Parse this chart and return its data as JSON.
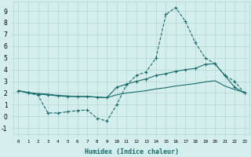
{
  "xlabel": "Humidex (Indice chaleur)",
  "bg_color": "#d4eeed",
  "grid_color": "#b8d8d8",
  "line_color": "#1a6b6b",
  "xlim": [
    -0.5,
    23.5
  ],
  "ylim": [
    -1.5,
    9.8
  ],
  "xtick_labels": [
    "0",
    "1",
    "2",
    "3",
    "4",
    "5",
    "6",
    "7",
    "8",
    "9",
    "10",
    "11",
    "12",
    "13",
    "14",
    "15",
    "16",
    "17",
    "18",
    "19",
    "20",
    "21",
    "22",
    "23"
  ],
  "ytick_labels": [
    "-1",
    "0",
    "1",
    "2",
    "3",
    "4",
    "5",
    "6",
    "7",
    "8",
    "9"
  ],
  "ytick_vals": [
    -1,
    0,
    1,
    2,
    3,
    4,
    5,
    6,
    7,
    8,
    9
  ],
  "series1_x": [
    0,
    1,
    2,
    3,
    4,
    5,
    6,
    7,
    8,
    9,
    10,
    11,
    12,
    13,
    14,
    15,
    16,
    17,
    18,
    19,
    20,
    21,
    22,
    23
  ],
  "series1_y": [
    2.2,
    2.0,
    1.8,
    0.3,
    0.3,
    0.4,
    0.5,
    0.55,
    -0.15,
    -0.4,
    1.0,
    2.7,
    3.5,
    3.8,
    5.0,
    8.7,
    9.3,
    8.1,
    6.3,
    5.0,
    4.5,
    3.5,
    3.0,
    2.0
  ],
  "series2_x": [
    0,
    1,
    2,
    3,
    4,
    5,
    6,
    7,
    8,
    9,
    10,
    11,
    12,
    13,
    14,
    15,
    16,
    17,
    18,
    19,
    20,
    21,
    22,
    23
  ],
  "series2_y": [
    2.2,
    2.0,
    1.9,
    1.85,
    1.75,
    1.7,
    1.7,
    1.7,
    1.65,
    1.6,
    2.5,
    2.75,
    3.0,
    3.2,
    3.5,
    3.65,
    3.85,
    4.0,
    4.1,
    4.45,
    4.5,
    3.5,
    2.5,
    2.0
  ],
  "series3_x": [
    0,
    1,
    2,
    3,
    4,
    5,
    6,
    7,
    8,
    9,
    10,
    11,
    12,
    13,
    14,
    15,
    16,
    17,
    18,
    19,
    20,
    21,
    22,
    23
  ],
  "series3_y": [
    2.2,
    2.05,
    1.95,
    1.9,
    1.8,
    1.75,
    1.7,
    1.7,
    1.65,
    1.6,
    1.85,
    2.0,
    2.1,
    2.2,
    2.35,
    2.45,
    2.6,
    2.7,
    2.8,
    2.95,
    3.05,
    2.6,
    2.3,
    2.05
  ]
}
